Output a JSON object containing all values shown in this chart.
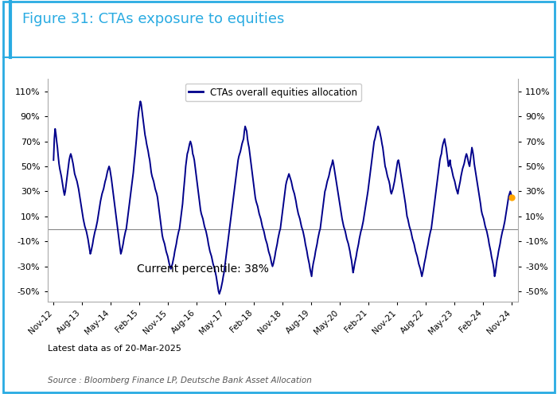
{
  "title": "Figure 31: CTAs exposure to equities",
  "legend_label": "CTAs overall equities allocation",
  "yticks": [
    -50,
    -30,
    -10,
    10,
    30,
    50,
    70,
    90,
    110
  ],
  "ylim": [
    -58,
    120
  ],
  "annotation": "Current percentile: 38%",
  "latest_data": "Latest data as of 20-Mar-2025",
  "source": "Source : Bloomberg Finance LP, Deutsche Bank Asset Allocation",
  "line_color": "#00008B",
  "dot_color": "#FFA500",
  "background_color": "#ffffff",
  "border_color": "#29ABE2",
  "title_color": "#29ABE2",
  "hline_color": "#888888",
  "x_labels": [
    "Nov-12",
    "Aug-13",
    "May-14",
    "Feb-15",
    "Nov-15",
    "Aug-16",
    "May-17",
    "Feb-18",
    "Nov-18",
    "Aug-19",
    "May-20",
    "Feb-21",
    "Nov-21",
    "Aug-22",
    "May-23",
    "Feb-24",
    "Nov-24"
  ],
  "y_data": [
    55,
    72,
    80,
    76,
    70,
    65,
    58,
    52,
    48,
    45,
    42,
    38,
    34,
    30,
    27,
    30,
    35,
    40,
    45,
    50,
    55,
    58,
    60,
    58,
    55,
    52,
    48,
    44,
    42,
    40,
    38,
    35,
    32,
    28,
    24,
    20,
    16,
    12,
    8,
    5,
    2,
    0,
    -2,
    -5,
    -8,
    -12,
    -16,
    -20,
    -18,
    -15,
    -12,
    -8,
    -5,
    -2,
    0,
    3,
    6,
    10,
    14,
    18,
    22,
    25,
    28,
    30,
    32,
    35,
    38,
    40,
    43,
    46,
    48,
    50,
    48,
    44,
    40,
    35,
    30,
    25,
    20,
    15,
    10,
    5,
    0,
    -5,
    -10,
    -15,
    -20,
    -18,
    -15,
    -12,
    -8,
    -5,
    -2,
    0,
    5,
    10,
    15,
    20,
    25,
    30,
    35,
    40,
    45,
    52,
    58,
    65,
    72,
    80,
    88,
    94,
    98,
    102,
    100,
    95,
    90,
    85,
    80,
    75,
    72,
    68,
    65,
    62,
    58,
    55,
    50,
    45,
    42,
    40,
    38,
    35,
    32,
    30,
    28,
    25,
    20,
    15,
    10,
    5,
    0,
    -5,
    -8,
    -10,
    -12,
    -15,
    -18,
    -20,
    -22,
    -25,
    -28,
    -30,
    -32,
    -30,
    -28,
    -25,
    -22,
    -18,
    -15,
    -12,
    -8,
    -5,
    -2,
    0,
    5,
    10,
    15,
    20,
    28,
    35,
    42,
    50,
    55,
    60,
    62,
    65,
    68,
    70,
    68,
    65,
    60,
    58,
    55,
    50,
    45,
    40,
    35,
    30,
    25,
    20,
    15,
    12,
    10,
    8,
    5,
    2,
    0,
    -2,
    -5,
    -8,
    -12,
    -15,
    -18,
    -20,
    -22,
    -25,
    -28,
    -30,
    -32,
    -35,
    -38,
    -42,
    -46,
    -50,
    -52,
    -50,
    -48,
    -45,
    -42,
    -38,
    -35,
    -30,
    -25,
    -20,
    -15,
    -10,
    -5,
    0,
    5,
    10,
    15,
    20,
    25,
    30,
    35,
    40,
    45,
    50,
    55,
    58,
    60,
    62,
    65,
    68,
    70,
    72,
    78,
    82,
    80,
    78,
    72,
    68,
    65,
    60,
    55,
    50,
    45,
    40,
    35,
    30,
    25,
    22,
    20,
    18,
    15,
    12,
    10,
    8,
    5,
    2,
    0,
    -2,
    -5,
    -8,
    -10,
    -12,
    -15,
    -18,
    -20,
    -22,
    -25,
    -28,
    -30,
    -28,
    -25,
    -22,
    -18,
    -15,
    -12,
    -8,
    -5,
    -2,
    0,
    5,
    10,
    15,
    20,
    25,
    30,
    35,
    38,
    40,
    42,
    44,
    42,
    40,
    38,
    35,
    32,
    30,
    28,
    25,
    22,
    18,
    15,
    12,
    10,
    8,
    5,
    2,
    0,
    -2,
    -5,
    -8,
    -12,
    -15,
    -18,
    -22,
    -25,
    -28,
    -32,
    -35,
    -38,
    -32,
    -28,
    -25,
    -22,
    -18,
    -15,
    -12,
    -8,
    -5,
    -2,
    0,
    5,
    10,
    15,
    20,
    25,
    30,
    32,
    35,
    38,
    40,
    42,
    45,
    48,
    50,
    52,
    55,
    52,
    48,
    44,
    40,
    36,
    32,
    28,
    24,
    20,
    16,
    12,
    8,
    5,
    2,
    0,
    -2,
    -5,
    -8,
    -10,
    -12,
    -15,
    -18,
    -22,
    -25,
    -30,
    -35,
    -32,
    -28,
    -25,
    -22,
    -18,
    -15,
    -12,
    -8,
    -5,
    -2,
    0,
    3,
    6,
    10,
    14,
    18,
    22,
    26,
    30,
    35,
    40,
    45,
    50,
    55,
    60,
    65,
    70,
    72,
    75,
    78,
    80,
    82,
    80,
    78,
    75,
    72,
    68,
    65,
    60,
    55,
    50,
    48,
    45,
    42,
    40,
    38,
    35,
    30,
    28,
    30,
    32,
    35,
    38,
    42,
    46,
    50,
    54,
    55,
    52,
    48,
    44,
    40,
    36,
    32,
    28,
    24,
    20,
    15,
    10,
    8,
    5,
    2,
    0,
    -2,
    -5,
    -8,
    -10,
    -12,
    -15,
    -18,
    -20,
    -22,
    -25,
    -28,
    -30,
    -32,
    -35,
    -38,
    -35,
    -32,
    -28,
    -25,
    -22,
    -18,
    -15,
    -12,
    -8,
    -5,
    -2,
    0,
    5,
    10,
    15,
    20,
    25,
    30,
    35,
    40,
    45,
    50,
    55,
    58,
    60,
    65,
    68,
    70,
    72,
    68,
    65,
    60,
    55,
    50,
    52,
    55,
    50,
    48,
    45,
    42,
    40,
    38,
    35,
    32,
    30,
    28,
    32,
    35,
    38,
    42,
    45,
    48,
    50,
    52,
    55,
    58,
    60,
    58,
    55,
    52,
    50,
    55,
    60,
    65,
    62,
    58,
    52,
    48,
    44,
    40,
    36,
    32,
    28,
    24,
    20,
    15,
    12,
    10,
    8,
    5,
    2,
    0,
    -2,
    -5,
    -8,
    -12,
    -15,
    -18,
    -22,
    -25,
    -28,
    -32,
    -38,
    -35,
    -30,
    -25,
    -22,
    -18,
    -15,
    -12,
    -8,
    -5,
    -2,
    0,
    3,
    6,
    10,
    14,
    18,
    22,
    26,
    28,
    30,
    28,
    25
  ]
}
